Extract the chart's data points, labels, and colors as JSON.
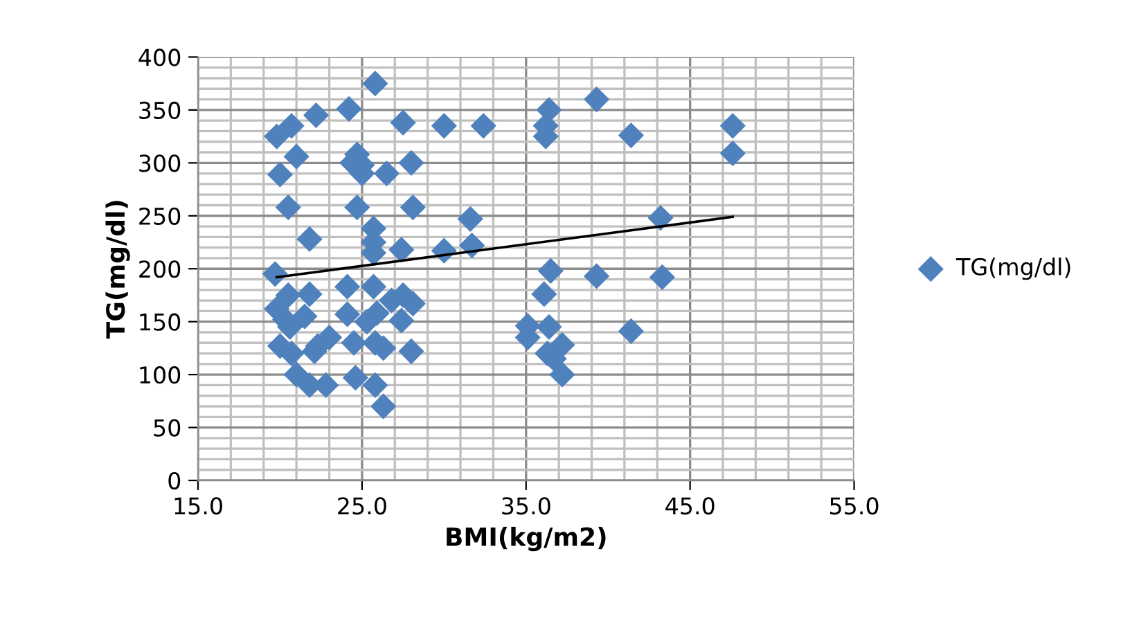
{
  "chart_data": {
    "type": "scatter",
    "xlabel": "BMI(kg/m2)",
    "ylabel": "TG(mg/dl)",
    "xlim": [
      15,
      55
    ],
    "xticks": [
      {
        "value": 15,
        "label": "15.0"
      },
      {
        "value": 25,
        "label": "25.0"
      },
      {
        "value": 35,
        "label": "35.0"
      },
      {
        "value": 45,
        "label": "45.0"
      },
      {
        "value": 55,
        "label": "55.0"
      }
    ],
    "ylim": [
      0,
      400
    ],
    "yticks": [
      0,
      50,
      100,
      150,
      200,
      250,
      300,
      350,
      400
    ],
    "grid": true,
    "legend": "right",
    "marker": "diamond",
    "series": [
      {
        "name": "TG(mg/dl)",
        "color": "#4f81bd",
        "x": [
          19.8,
          20.7,
          21.0,
          22.2,
          24.2,
          25.8,
          24.4,
          24.7,
          25.0,
          25.0,
          26.5,
          27.5,
          28.0,
          30.0,
          32.4,
          20.0,
          20.5,
          24.7,
          28.1,
          21.8,
          25.7,
          25.7,
          25.7,
          27.4,
          30.0,
          31.6,
          31.7,
          19.7,
          25.7,
          24.1,
          19.8,
          20.5,
          20.3,
          20.6,
          21.8,
          21.5,
          24.1,
          25.3,
          25.9,
          26.8,
          27.5,
          28.1,
          27.4,
          20.0,
          20.7,
          21.0,
          21.8,
          22.1,
          22.3,
          23.0,
          22.8,
          24.5,
          24.6,
          25.8,
          26.3,
          25.8,
          26.3,
          28.0,
          35.1,
          35.1,
          36.1,
          36.5,
          36.4,
          36.3,
          36.7,
          37.2,
          37.2,
          36.2,
          36.2,
          36.4,
          39.3,
          41.4,
          39.3,
          41.4,
          43.2,
          43.3,
          47.6,
          47.6
        ],
        "values": [
          325,
          335,
          306,
          345,
          351,
          375,
          300,
          308,
          290,
          298,
          290,
          338,
          300,
          335,
          335,
          289,
          258,
          258,
          258,
          228,
          238,
          225,
          215,
          218,
          217,
          247,
          222,
          195,
          183,
          183,
          162,
          175,
          152,
          145,
          176,
          155,
          157,
          150,
          158,
          170,
          175,
          167,
          151,
          127,
          120,
          100,
          90,
          122,
          127,
          135,
          90,
          130,
          97,
          130,
          125,
          90,
          70,
          122,
          146,
          135,
          176,
          198,
          145,
          120,
          115,
          128,
          100,
          325,
          335,
          350,
          360,
          326,
          193,
          141,
          248,
          192,
          335,
          309
        ]
      },
      {
        "type": "line",
        "color": "#000000",
        "marker": "none",
        "line_style": "solid",
        "x": [
          19.8,
          47.6
        ],
        "values": [
          192,
          249
        ]
      }
    ]
  }
}
